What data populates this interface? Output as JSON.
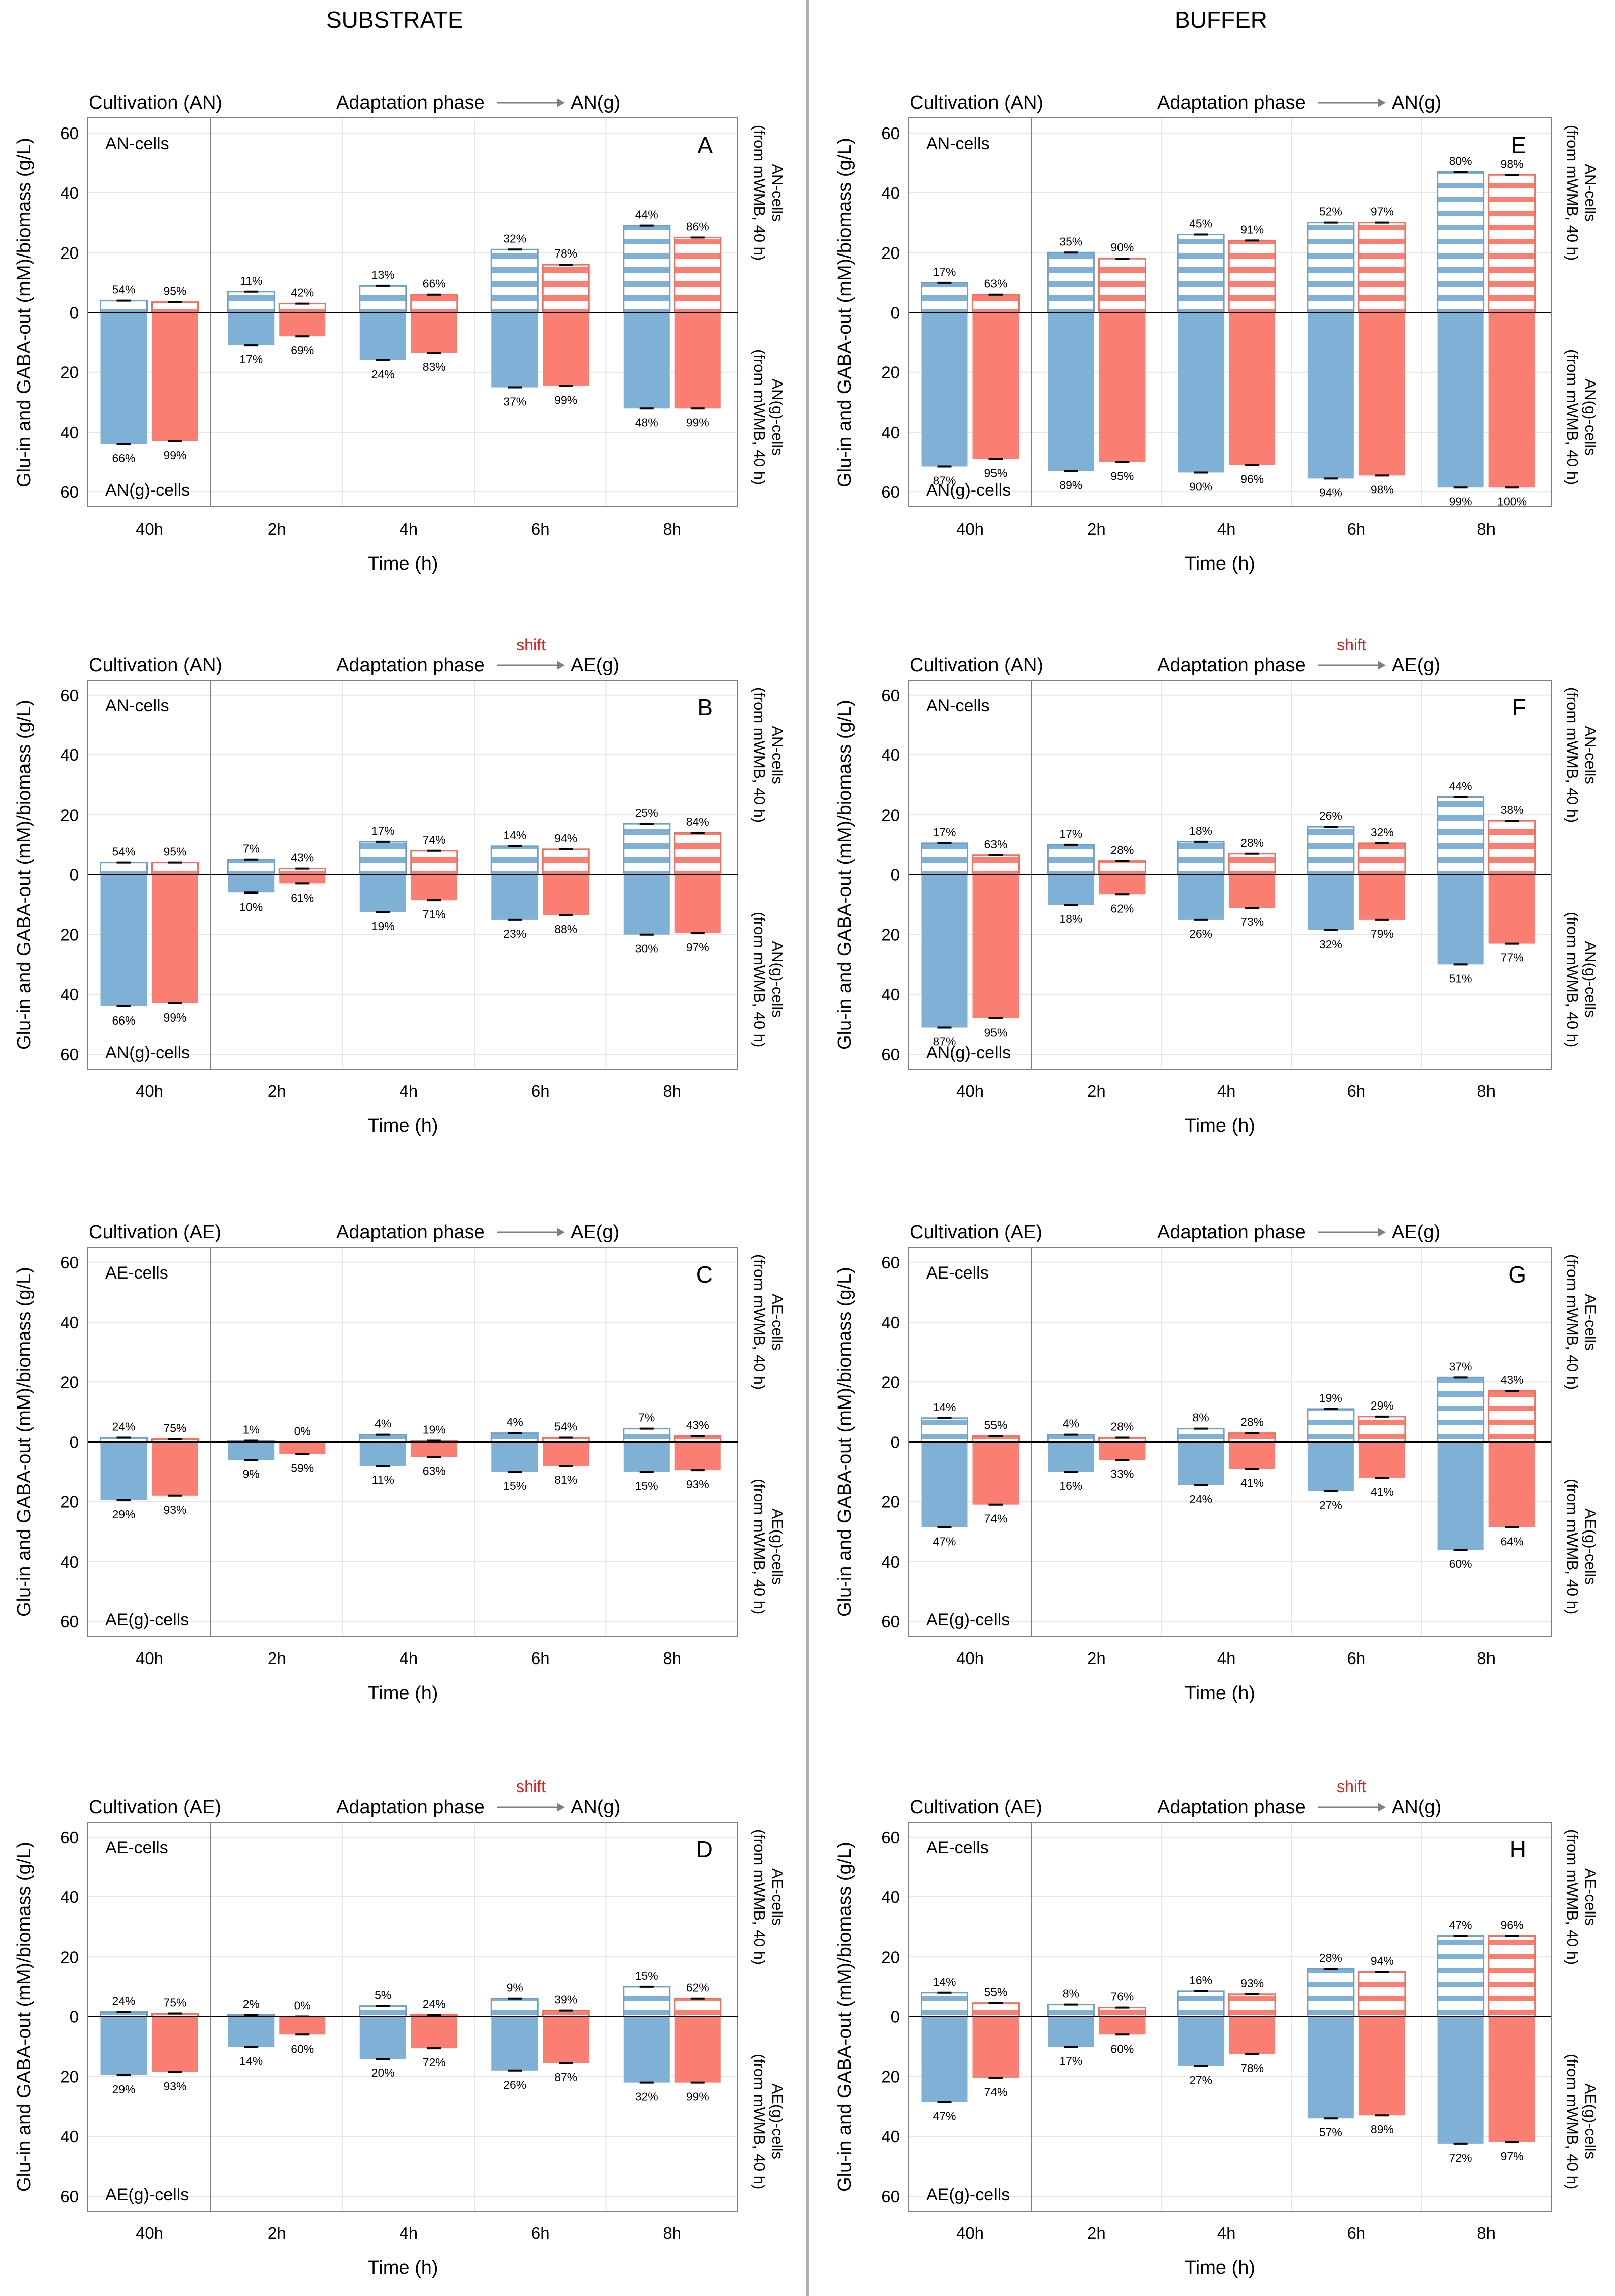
{
  "headers": {
    "left": "SUBSTRATE",
    "right": "BUFFER"
  },
  "colors": {
    "glu": "#7fb0d6",
    "gaba": "#fa7f72",
    "glu_edge": "#6d9fcc",
    "gaba_edge": "#f07060",
    "shift": "#e02020",
    "axis": "#000000",
    "grid": "#e6e6e6",
    "frame": "#7f7f7f",
    "divider": "#b0b0b0"
  },
  "common": {
    "ylabel": "Glu-in and GABA-out (mM)/biomass (g/L)",
    "xlabel": "Time (h)",
    "categories": [
      "40h",
      "2h",
      "4h",
      "6h",
      "8h"
    ],
    "y_ticks": [
      "60",
      "40",
      "20",
      "0",
      "20",
      "40",
      "60"
    ],
    "adapt_label": "Adaptation phase",
    "shift_label": "shift"
  },
  "chart_data": [
    {
      "type": "bar",
      "panel": "A",
      "column": "left",
      "row": 0,
      "title": "Cultivation (AN)",
      "target": "AN(g)",
      "shift": false,
      "top_cells": "AN-cells",
      "bottom_cells": "AN(g)-cells",
      "right_top": [
        "AN-cells",
        "(from mWMB, 40 h)"
      ],
      "right_bottom": [
        "AN(g)-cells",
        "(from mWMB, 40 h)"
      ],
      "ylim": [
        -65,
        65
      ],
      "series": [
        {
          "name": "Glu-in",
          "up": [
            4,
            7,
            9,
            21,
            29
          ],
          "down": [
            44,
            11,
            16,
            25,
            32
          ],
          "up_pct": [
            "54%",
            "11%",
            "13%",
            "32%",
            "44%"
          ],
          "down_pct": [
            "66%",
            "17%",
            "24%",
            "37%",
            "48%"
          ]
        },
        {
          "name": "GABA-out",
          "up": [
            3.5,
            3,
            6,
            16,
            25
          ],
          "down": [
            43,
            8,
            13.5,
            24.5,
            32
          ],
          "up_pct": [
            "95%",
            "42%",
            "66%",
            "78%",
            "86%"
          ],
          "down_pct": [
            "99%",
            "69%",
            "83%",
            "99%",
            "99%"
          ]
        }
      ]
    },
    {
      "type": "bar",
      "panel": "E",
      "column": "right",
      "row": 0,
      "title": "Cultivation (AN)",
      "target": "AN(g)",
      "shift": false,
      "top_cells": "AN-cells",
      "bottom_cells": "AN(g)-cells",
      "right_top": [
        "AN-cells",
        "(from mWMB, 40 h)"
      ],
      "right_bottom": [
        "AN(g)-cells",
        "(from mWMB, 40 h)"
      ],
      "ylim": [
        -65,
        65
      ],
      "series": [
        {
          "name": "Glu-in",
          "up": [
            10,
            20,
            26,
            30,
            47
          ],
          "down": [
            51.5,
            53,
            53.5,
            55.5,
            58.5
          ],
          "up_pct": [
            "17%",
            "35%",
            "45%",
            "52%",
            "80%"
          ],
          "down_pct": [
            "87%",
            "89%",
            "90%",
            "94%",
            "99%"
          ]
        },
        {
          "name": "GABA-out",
          "up": [
            6,
            18,
            24,
            30,
            46
          ],
          "down": [
            49,
            50,
            51,
            54.5,
            58.5
          ],
          "up_pct": [
            "63%",
            "90%",
            "91%",
            "97%",
            "98%"
          ],
          "down_pct": [
            "95%",
            "95%",
            "96%",
            "98%",
            "100%"
          ]
        }
      ]
    },
    {
      "type": "bar",
      "panel": "B",
      "column": "left",
      "row": 1,
      "title": "Cultivation (AN)",
      "target": "AE(g)",
      "shift": true,
      "top_cells": "AN-cells",
      "bottom_cells": "AN(g)-cells",
      "right_top": [
        "AN-cells",
        "(from mWMB, 40 h)"
      ],
      "right_bottom": [
        "AN(g)-cells",
        "(from mWMB, 40 h)"
      ],
      "ylim": [
        -65,
        65
      ],
      "series": [
        {
          "name": "Glu-in",
          "up": [
            4,
            5,
            11,
            9.5,
            17
          ],
          "down": [
            44,
            6,
            12.5,
            15,
            20
          ],
          "up_pct": [
            "54%",
            "7%",
            "17%",
            "14%",
            "25%"
          ],
          "down_pct": [
            "66%",
            "10%",
            "19%",
            "23%",
            "30%"
          ]
        },
        {
          "name": "GABA-out",
          "up": [
            4,
            2,
            8,
            8.5,
            14
          ],
          "down": [
            43,
            3,
            8.5,
            13.5,
            19.5
          ],
          "up_pct": [
            "95%",
            "43%",
            "74%",
            "94%",
            "84%"
          ],
          "down_pct": [
            "99%",
            "61%",
            "71%",
            "88%",
            "97%"
          ]
        }
      ]
    },
    {
      "type": "bar",
      "panel": "F",
      "column": "right",
      "row": 1,
      "title": "Cultivation (AN)",
      "target": "AE(g)",
      "shift": true,
      "top_cells": "AN-cells",
      "bottom_cells": "AN(g)-cells",
      "right_top": [
        "AN-cells",
        "(from mWMB, 40 h)"
      ],
      "right_bottom": [
        "AN(g)-cells",
        "(from mWMB, 40 h)"
      ],
      "ylim": [
        -65,
        65
      ],
      "series": [
        {
          "name": "Glu-in",
          "up": [
            10.5,
            10,
            11,
            16,
            26
          ],
          "down": [
            51,
            10,
            15,
            18.5,
            30
          ],
          "up_pct": [
            "17%",
            "17%",
            "18%",
            "26%",
            "44%"
          ],
          "down_pct": [
            "87%",
            "18%",
            "26%",
            "32%",
            "51%"
          ]
        },
        {
          "name": "GABA-out",
          "up": [
            6.5,
            4.5,
            7,
            10.5,
            18
          ],
          "down": [
            48,
            6.5,
            11,
            15,
            23
          ],
          "up_pct": [
            "63%",
            "28%",
            "28%",
            "32%",
            "38%"
          ],
          "down_pct": [
            "95%",
            "62%",
            "73%",
            "79%",
            "77%"
          ]
        }
      ]
    },
    {
      "type": "bar",
      "panel": "C",
      "column": "left",
      "row": 2,
      "title": "Cultivation (AE)",
      "target": "AE(g)",
      "shift": false,
      "top_cells": "AE-cells",
      "bottom_cells": "AE(g)-cells",
      "right_top": [
        "AE-cells",
        "(from mWMB, 40 h)"
      ],
      "right_bottom": [
        "AE(g)-cells",
        "(from mWMB, 40 h)"
      ],
      "ylim": [
        -65,
        65
      ],
      "series": [
        {
          "name": "Glu-in",
          "up": [
            1.5,
            0.5,
            2.5,
            3,
            4.5
          ],
          "down": [
            19.5,
            6,
            8,
            10,
            10
          ],
          "up_pct": [
            "24%",
            "1%",
            "4%",
            "4%",
            "7%"
          ],
          "down_pct": [
            "29%",
            "9%",
            "11%",
            "15%",
            "15%"
          ]
        },
        {
          "name": "GABA-out",
          "up": [
            1,
            0,
            0.5,
            1.5,
            2
          ],
          "down": [
            18,
            4,
            5,
            8,
            9.5
          ],
          "up_pct": [
            "75%",
            "0%",
            "19%",
            "54%",
            "43%"
          ],
          "down_pct": [
            "93%",
            "59%",
            "63%",
            "81%",
            "93%"
          ]
        }
      ]
    },
    {
      "type": "bar",
      "panel": "G",
      "column": "right",
      "row": 2,
      "title": "Cultivation (AE)",
      "target": "AE(g)",
      "shift": false,
      "top_cells": "AE-cells",
      "bottom_cells": "AE(g)-cells",
      "right_top": [
        "AE-cells",
        "(from mWMB, 40 h)"
      ],
      "right_bottom": [
        "AE(g)-cells",
        "(from mWMB, 40 h)"
      ],
      "ylim": [
        -65,
        65
      ],
      "series": [
        {
          "name": "Glu-in",
          "up": [
            8,
            2.5,
            4.5,
            11,
            21.5
          ],
          "down": [
            28.5,
            10,
            14.5,
            16.5,
            36
          ],
          "up_pct": [
            "14%",
            "4%",
            "8%",
            "19%",
            "37%"
          ],
          "down_pct": [
            "47%",
            "16%",
            "24%",
            "27%",
            "60%"
          ]
        },
        {
          "name": "GABA-out",
          "up": [
            2,
            1.5,
            3,
            8.5,
            17
          ],
          "down": [
            21,
            6,
            9,
            12,
            28.5
          ],
          "up_pct": [
            "55%",
            "28%",
            "28%",
            "29%",
            "43%"
          ],
          "down_pct": [
            "74%",
            "33%",
            "41%",
            "41%",
            "64%"
          ]
        }
      ]
    },
    {
      "type": "bar",
      "panel": "D",
      "column": "left",
      "row": 3,
      "title": "Cultivation (AE)",
      "target": "AN(g)",
      "shift": true,
      "top_cells": "AE-cells",
      "bottom_cells": "AE(g)-cells",
      "right_top": [
        "AE-cells",
        "(from mWMB, 40 h)"
      ],
      "right_bottom": [
        "AE(g)-cells",
        "(from mWMB, 40 h)"
      ],
      "ylim": [
        -65,
        65
      ],
      "series": [
        {
          "name": "Glu-in",
          "up": [
            1.5,
            0.5,
            3.5,
            6,
            10
          ],
          "down": [
            19.5,
            10,
            14,
            18,
            22
          ],
          "up_pct": [
            "24%",
            "2%",
            "5%",
            "9%",
            "15%"
          ],
          "down_pct": [
            "29%",
            "14%",
            "20%",
            "26%",
            "32%"
          ]
        },
        {
          "name": "GABA-out",
          "up": [
            1,
            0,
            0.5,
            2,
            6
          ],
          "down": [
            18.5,
            6,
            10.5,
            15.5,
            22
          ],
          "up_pct": [
            "75%",
            "0%",
            "24%",
            "39%",
            "62%"
          ],
          "down_pct": [
            "93%",
            "60%",
            "72%",
            "87%",
            "99%"
          ]
        }
      ]
    },
    {
      "type": "bar",
      "panel": "H",
      "column": "right",
      "row": 3,
      "title": "Cultivation (AE)",
      "target": "AN(g)",
      "shift": true,
      "top_cells": "AE-cells",
      "bottom_cells": "AE(g)-cells",
      "right_top": [
        "AE-cells",
        "(from mWMB, 40 h)"
      ],
      "right_bottom": [
        "AE(g)-cells",
        "(from mWMB, 40 h)"
      ],
      "ylim": [
        -65,
        65
      ],
      "series": [
        {
          "name": "Glu-in",
          "up": [
            8,
            4,
            8.5,
            16,
            27
          ],
          "down": [
            28.5,
            10,
            16.5,
            34,
            42.5
          ],
          "up_pct": [
            "14%",
            "8%",
            "16%",
            "28%",
            "47%"
          ],
          "down_pct": [
            "47%",
            "17%",
            "27%",
            "57%",
            "72%"
          ]
        },
        {
          "name": "GABA-out",
          "up": [
            4.5,
            3,
            7.5,
            15,
            27
          ],
          "down": [
            20.5,
            6,
            12.5,
            33,
            42
          ],
          "up_pct": [
            "55%",
            "76%",
            "93%",
            "94%",
            "96%"
          ],
          "down_pct": [
            "74%",
            "60%",
            "78%",
            "89%",
            "97%"
          ]
        }
      ]
    }
  ]
}
